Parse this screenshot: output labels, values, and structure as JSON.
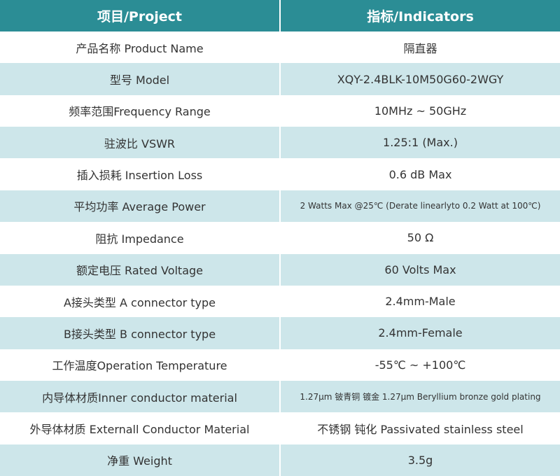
{
  "header": {
    "col1": "项目/Project",
    "col2": "指标/Indicators"
  },
  "rows": [
    {
      "label": "产品名称 Product Name",
      "value": "隔直器"
    },
    {
      "label": "型号 Model",
      "value": "XQY-2.4BLK-10M50G60-2WGY"
    },
    {
      "label": "频率范围Frequency Range",
      "value": "10MHz ~ 50GHz"
    },
    {
      "label": "驻波比 VSWR",
      "value": "1.25:1 (Max.)"
    },
    {
      "label": "插入损耗 Insertion Loss",
      "value": "0.6 dB Max"
    },
    {
      "label": "平均功率 Average Power",
      "value": "2 Watts Max @25℃ (Derate linearlyto 0.2 Watt at 100℃)"
    },
    {
      "label": "阻抗 Impedance",
      "value": "50 Ω"
    },
    {
      "label": "额定电压 Rated Voltage",
      "value": "60 Volts Max"
    },
    {
      "label": "A接头类型 A connector type",
      "value": "2.4mm-Male"
    },
    {
      "label": "B接头类型 B connector type",
      "value": "2.4mm-Female"
    },
    {
      "label": "工作温度Operation Temperature",
      "value": "-55℃ ~ +100℃"
    },
    {
      "label": "内导体材质Inner conductor material",
      "value": "1.27μm 铍青铜 镀金 1.27μm Beryllium bronze gold plating"
    },
    {
      "label": "外导体材质 Externall Conductor Material",
      "value": "不锈钢 钝化 Passivated stainless steel"
    },
    {
      "label": "净重 Weight",
      "value": "3.5g"
    }
  ],
  "colors": {
    "header": "#2b8d95",
    "alt_row": "#cde6ea"
  }
}
